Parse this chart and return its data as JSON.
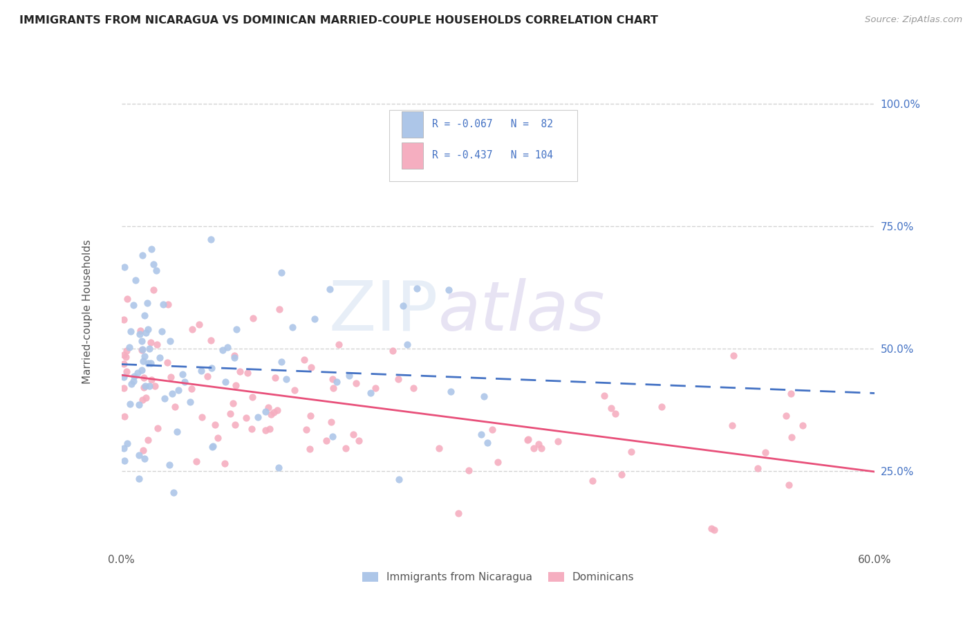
{
  "title": "IMMIGRANTS FROM NICARAGUA VS DOMINICAN MARRIED-COUPLE HOUSEHOLDS CORRELATION CHART",
  "source": "Source: ZipAtlas.com",
  "ylabel": "Married-couple Households",
  "legend_labels": [
    "Immigrants from Nicaragua",
    "Dominicans"
  ],
  "r_nicaragua": -0.067,
  "n_nicaragua": 82,
  "r_dominican": -0.437,
  "n_dominican": 104,
  "xlim": [
    0.0,
    0.6
  ],
  "ylim": [
    0.09,
    1.06
  ],
  "xtick_vals": [
    0.0,
    0.1,
    0.2,
    0.3,
    0.4,
    0.5,
    0.6
  ],
  "xtick_labels": [
    "0.0%",
    "",
    "",
    "",
    "",
    "",
    "60.0%"
  ],
  "ytick_positions": [
    0.25,
    0.5,
    0.75,
    1.0
  ],
  "ytick_labels": [
    "25.0%",
    "50.0%",
    "75.0%",
    "100.0%"
  ],
  "color_nicaragua": "#adc6e8",
  "color_dominican": "#f5aec0",
  "line_color_nicaragua": "#4472c4",
  "line_color_dominican": "#e8507a",
  "background_color": "#ffffff",
  "grid_color": "#c8c8c8",
  "title_color": "#222222",
  "source_color": "#999999",
  "ytick_color": "#4472c4",
  "xtick_color": "#555555",
  "ylabel_color": "#555555",
  "legend_text_color": "#111111",
  "legend_num_color": "#4472c4"
}
